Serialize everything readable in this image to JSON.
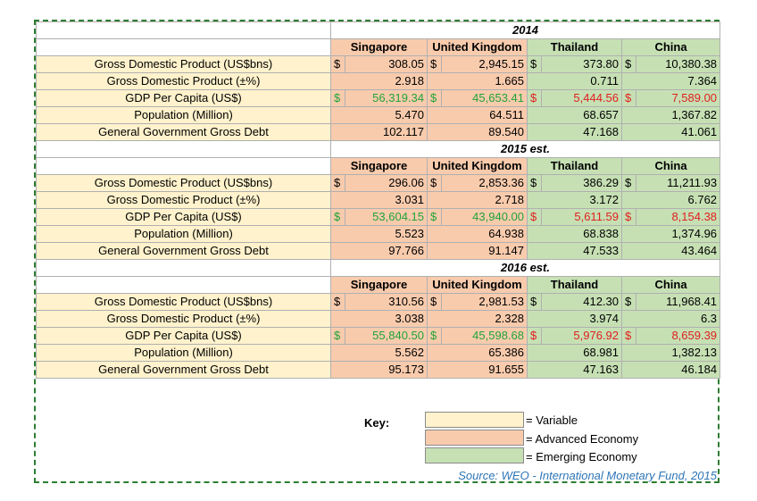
{
  "columns": [
    "Singapore",
    "United Kingdom",
    "Thailand",
    "China"
  ],
  "currency_symbol": "$",
  "row_labels": [
    "Gross Domestic Product (US$bns)",
    "Gross Domestic Product (±%)",
    "GDP Per Capita (US$)",
    "Population (Million)",
    "General Government Gross Debt"
  ],
  "sections": [
    {
      "year": "2014",
      "rows": [
        [
          "308.05",
          "2,945.15",
          "373.80",
          "10,380.38"
        ],
        [
          "2.918",
          "1.665",
          "0.711",
          "7.364"
        ],
        [
          "56,319.34",
          "45,653.41",
          "5,444.56",
          "7,589.00"
        ],
        [
          "5.470",
          "64.511",
          "68.657",
          "1,367.82"
        ],
        [
          "102.117",
          "89.540",
          "47.168",
          "41.061"
        ]
      ]
    },
    {
      "year": "2015 est.",
      "rows": [
        [
          "296.06",
          "2,853.36",
          "386.29",
          "11,211.93"
        ],
        [
          "3.031",
          "2.718",
          "3.172",
          "6.762"
        ],
        [
          "53,604.15",
          "43,940.00",
          "5,611.59",
          "8,154.38"
        ],
        [
          "5.523",
          "64.938",
          "68.838",
          "1,374.96"
        ],
        [
          "97.766",
          "91.147",
          "47.533",
          "43.464"
        ]
      ]
    },
    {
      "year": "2016 est.",
      "rows": [
        [
          "310.56",
          "2,981.53",
          "412.30",
          "11,968.41"
        ],
        [
          "3.038",
          "2.328",
          "3.974",
          "6.3"
        ],
        [
          "55,840.50",
          "45,598.68",
          "5,976.92",
          "8,659.39"
        ],
        [
          "5.562",
          "65.386",
          "68.981",
          "1,382.13"
        ],
        [
          "95.173",
          "91.655",
          "47.163",
          "46.184"
        ]
      ]
    }
  ],
  "key": {
    "title": "Key:",
    "items": [
      {
        "label": "= Variable",
        "color": "#fff2cc"
      },
      {
        "label": "= Advanced Economy",
        "color": "#f8cbad"
      },
      {
        "label": "= Emerging Economy",
        "color": "#c6e0b4"
      }
    ]
  },
  "source": "Source: WEO - International Monetary Fund, 2015",
  "colors": {
    "per_capita_advanced": "#22a33a",
    "per_capita_emerging": "#e02020",
    "border": "#2e7d32"
  }
}
